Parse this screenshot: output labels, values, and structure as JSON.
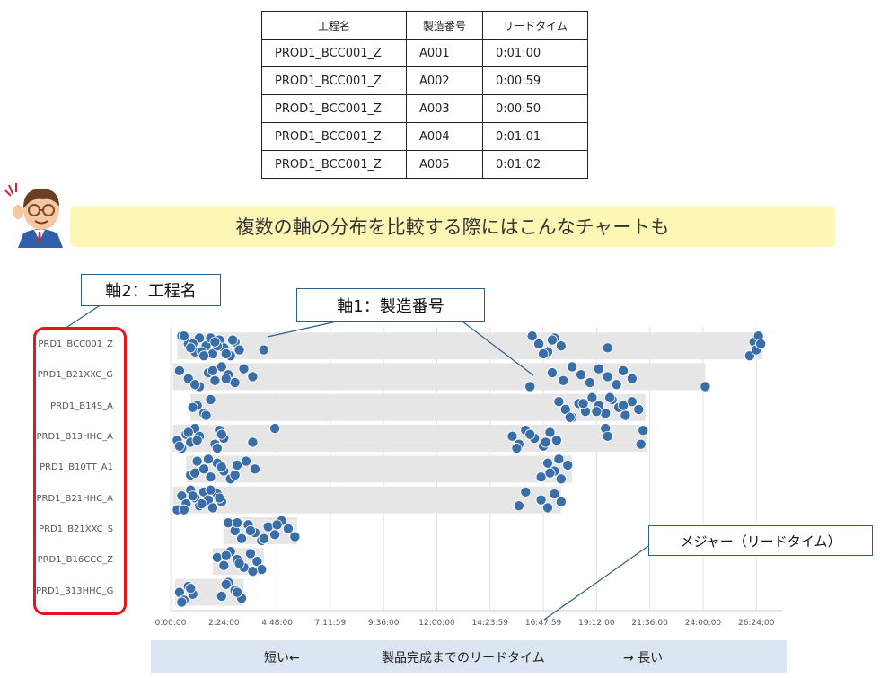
{
  "table": {
    "headers": [
      "工程名",
      "製造番号",
      "リードタイム"
    ],
    "rows": [
      [
        "PROD1_BCC001_Z",
        "A001",
        "0:01:00"
      ],
      [
        "PROD1_BCC001_Z",
        "A002",
        "0:00:59"
      ],
      [
        "PROD1_BCC001_Z",
        "A003",
        "0:00:50"
      ],
      [
        "PROD1_BCC001_Z",
        "A004",
        "0:01:01"
      ],
      [
        "PROD1_BCC001_Z",
        "A005",
        "0:01:02"
      ]
    ]
  },
  "banner": {
    "text": "複数の軸の分布を比較する際にはこんなチャートも"
  },
  "callouts": {
    "axis2": "軸2：工程名",
    "axis1": "軸1：製造番号",
    "measure": "メジャー（リードタイム）"
  },
  "bottom_bar": {
    "left": "短い←",
    "center": "製品完成までのリードタイム",
    "right": "→ 長い"
  },
  "colors": {
    "point": "#3a6ea8",
    "band": "#e6e6e6",
    "highlight": "#e0181b",
    "callout_border": "#2e5f8a",
    "banner": "#fdf7b5"
  },
  "chart_data": {
    "type": "scatter",
    "xlabel": "",
    "ylabel": "",
    "x_unit": "hours",
    "xlim": [
      0,
      27.2
    ],
    "x_ticks": [
      "0:00:00",
      "2:24:00",
      "4:48:00",
      "7:11:59",
      "9:36:00",
      "12:00:00",
      "14:23:59",
      "16:47:59",
      "19:12:00",
      "21:36:00",
      "24:00:00",
      "26:24:00"
    ],
    "categories": [
      "PRD1_BCC001_Z",
      "PRD1_B21XXC_G",
      "PRD1_B14S_A",
      "PRD1_B13HHC_A",
      "PRD1_B10TT_A1",
      "PRD1_B21HHC_A",
      "PRD1_B21XXC_S",
      "PRD1_B16CCC_Z",
      "PRD1_B13HHC_G"
    ],
    "ranges": [
      [
        0.3,
        26.7
      ],
      [
        0.1,
        24.1
      ],
      [
        0.9,
        21.4
      ],
      [
        0.1,
        21.5
      ],
      [
        0.7,
        18.1
      ],
      [
        0.1,
        17.6
      ],
      [
        2.4,
        5.7
      ],
      [
        1.9,
        4.2
      ],
      [
        0.2,
        3.3
      ]
    ],
    "series": [
      {
        "category": "PRD1_BCC001_Z",
        "x": [
          0.5,
          0.8,
          1.1,
          1.3,
          1.6,
          1.9,
          2.2,
          2.4,
          2.7,
          2.9,
          3.1,
          0.6,
          1.0,
          1.4,
          1.8,
          2.1,
          2.5,
          2.8,
          0.9,
          1.5,
          2.0,
          4.2,
          16.3,
          16.6,
          17.0,
          17.3,
          17.6,
          16.8,
          17.2,
          19.7,
          26.1,
          26.3,
          26.4,
          26.5,
          26.6
        ]
      },
      {
        "category": "PRD1_B21XXC_G",
        "x": [
          0.4,
          0.8,
          1.3,
          1.7,
          2.0,
          2.3,
          2.6,
          2.9,
          3.3,
          3.7,
          1.1,
          1.9,
          2.5,
          16.2,
          17.2,
          17.7,
          18.1,
          18.5,
          18.9,
          19.3,
          19.7,
          20.1,
          20.4,
          20.8,
          24.1
        ]
      },
      {
        "category": "PRD1_B14S_A",
        "x": [
          1.2,
          1.5,
          1.8,
          1.0,
          1.6,
          17.5,
          17.8,
          18.1,
          18.4,
          18.7,
          19.0,
          19.3,
          19.6,
          19.9,
          20.2,
          20.5,
          20.8,
          21.1,
          18.0,
          18.6,
          19.2,
          19.8,
          20.4
        ]
      },
      {
        "category": "PRD1_B13HHC_A",
        "x": [
          0.3,
          0.5,
          0.7,
          0.9,
          1.1,
          1.3,
          2.0,
          2.2,
          2.4,
          0.4,
          0.8,
          1.2,
          2.1,
          2.3,
          3.7,
          4.7,
          15.4,
          15.7,
          16.0,
          16.4,
          16.8,
          17.1,
          17.4,
          15.6,
          16.2,
          16.9,
          19.6,
          19.7,
          21.2,
          21.3
        ]
      },
      {
        "category": "PRD1_B10TT_A1",
        "x": [
          0.9,
          1.2,
          1.5,
          1.8,
          2.1,
          2.4,
          2.7,
          3.0,
          1.1,
          1.7,
          2.3,
          2.9,
          3.4,
          3.8,
          16.7,
          17.0,
          17.3,
          17.6,
          17.9,
          17.1,
          17.5
        ]
      },
      {
        "category": "PRD1_B21HHC_A",
        "x": [
          0.3,
          0.5,
          0.7,
          0.9,
          1.1,
          1.3,
          1.5,
          1.7,
          1.9,
          2.1,
          2.3,
          0.6,
          1.0,
          1.4,
          1.8,
          2.2,
          15.7,
          16.0,
          16.7,
          17.0,
          17.3,
          17.6
        ]
      },
      {
        "category": "PRD1_B21XXC_S",
        "x": [
          2.6,
          2.9,
          3.2,
          3.5,
          3.8,
          4.1,
          4.4,
          4.7,
          5.0,
          5.3,
          5.6,
          3.0,
          3.6,
          4.2,
          4.8
        ]
      },
      {
        "category": "PRD1_B16CCC_Z",
        "x": [
          2.1,
          2.4,
          2.7,
          3.0,
          3.3,
          3.6,
          3.9,
          4.1,
          2.5,
          3.1,
          3.7
        ]
      },
      {
        "category": "PRD1_B13HHC_G",
        "x": [
          0.4,
          0.6,
          0.8,
          1.0,
          0.5,
          0.9,
          2.3,
          2.6,
          2.9,
          3.2,
          2.5,
          3.0
        ]
      }
    ]
  }
}
